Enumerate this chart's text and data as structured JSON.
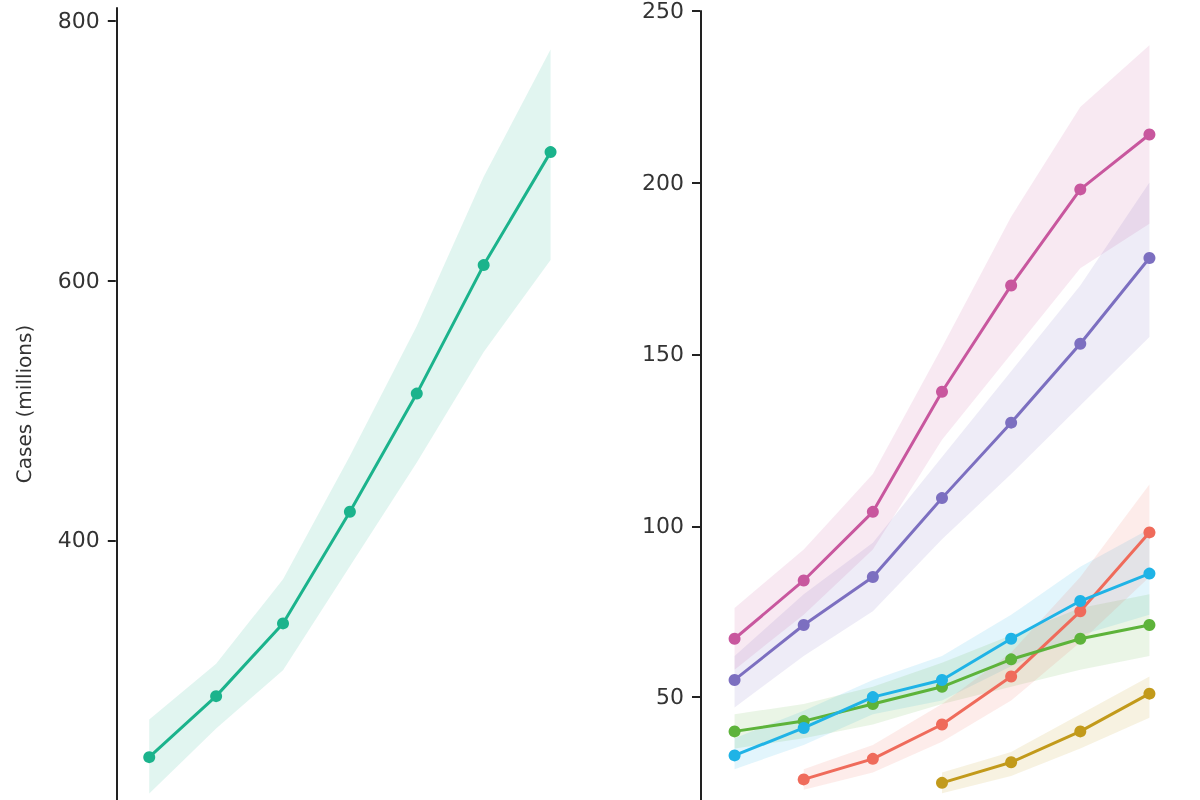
{
  "chart_data": [
    {
      "type": "line",
      "ylabel": "Cases (millions)",
      "categories": [
        null,
        null,
        null,
        null,
        null,
        null,
        null
      ],
      "ylim": [
        200,
        810
      ],
      "yticks": [
        400,
        600,
        800
      ],
      "tick_labels": "y",
      "grid": false,
      "marker": "circle",
      "line_style": "solid",
      "series": [
        {
          "color": "#1bb38c",
          "values": [
            233,
            280,
            336,
            422,
            513,
            612,
            699
          ],
          "lower": [
            205,
            255,
            300,
            380,
            460,
            545,
            616
          ],
          "upper": [
            262,
            305,
            370,
            465,
            565,
            680,
            778
          ]
        }
      ]
    },
    {
      "type": "line",
      "categories": [
        null,
        null,
        null,
        null,
        null,
        null,
        null
      ],
      "ylim": [
        20,
        250
      ],
      "yticks": [
        50,
        100,
        150,
        200,
        250
      ],
      "tick_labels": "y",
      "grid": false,
      "marker": "circle",
      "line_style": "solid",
      "series": [
        {
          "color": "#c8579e",
          "values": [
            67,
            84,
            104,
            139,
            170,
            198,
            214
          ],
          "lower": [
            58,
            74,
            93,
            125,
            150,
            175,
            188
          ],
          "upper": [
            76,
            93,
            115,
            152,
            190,
            222,
            240
          ]
        },
        {
          "color": "#7c6fc0",
          "values": [
            55,
            71,
            85,
            108,
            130,
            153,
            178
          ],
          "lower": [
            47,
            62,
            75,
            96,
            115,
            135,
            155
          ],
          "upper": [
            62,
            80,
            95,
            120,
            145,
            170,
            200
          ]
        },
        {
          "color": "#1fb3e6",
          "values": [
            33,
            41,
            50,
            55,
            67,
            78,
            86
          ],
          "lower": [
            29,
            36,
            45,
            49,
            59,
            68,
            74
          ],
          "upper": [
            38,
            46,
            55,
            62,
            74,
            88,
            99
          ]
        },
        {
          "color": "#5db33a",
          "values": [
            40,
            43,
            48,
            53,
            61,
            67,
            71
          ],
          "lower": [
            35,
            38,
            42,
            48,
            53,
            58,
            62
          ],
          "upper": [
            45,
            48,
            53,
            60,
            68,
            76,
            80
          ]
        },
        {
          "color": "#ef6b5b",
          "values": [
            null,
            26,
            32,
            42,
            56,
            75,
            98
          ],
          "lower": [
            null,
            23,
            28,
            37,
            49,
            66,
            85
          ],
          "upper": [
            null,
            29,
            36,
            48,
            63,
            85,
            112
          ]
        },
        {
          "color": "#c29a1b",
          "values": [
            null,
            null,
            null,
            25,
            31,
            40,
            51
          ],
          "lower": [
            null,
            null,
            null,
            22,
            27,
            35,
            44
          ],
          "upper": [
            null,
            null,
            null,
            28,
            34,
            45,
            56
          ]
        }
      ]
    }
  ]
}
